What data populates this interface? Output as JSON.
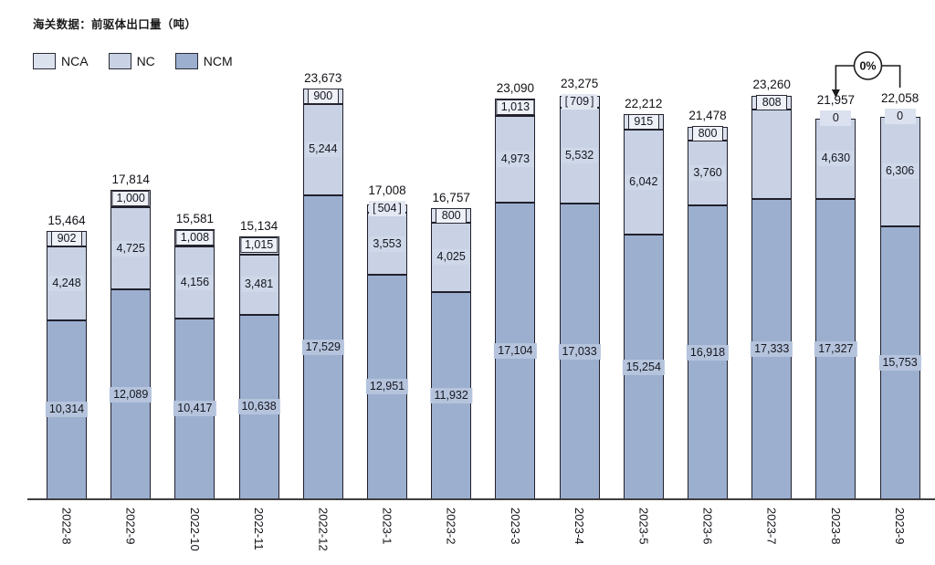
{
  "title": "海关数据：前驱体出口量（吨）",
  "legend": [
    {
      "label": "NCA",
      "color": "#dbe1ed"
    },
    {
      "label": "NC",
      "color": "#c8d2e4"
    },
    {
      "label": "NCM",
      "color": "#9cafcf"
    }
  ],
  "chart_data": {
    "type": "bar",
    "stacked": true,
    "title": "海关数据：前驱体出口量（吨）",
    "xlabel": "",
    "ylabel": "",
    "ylim": [
      0,
      24000
    ],
    "grid": false,
    "legend_position": "top-left",
    "categories": [
      "2022-8",
      "2022-9",
      "2022-10",
      "2022-11",
      "2022-12",
      "2023-1",
      "2023-2",
      "2023-3",
      "2023-4",
      "2023-5",
      "2023-6",
      "2023-7",
      "2023-8",
      "2023-9"
    ],
    "series": [
      {
        "name": "NCM",
        "color": "#9cafcf",
        "label_bg": "#b5c4dc",
        "values": [
          10314,
          12089,
          10417,
          10638,
          17529,
          12951,
          11932,
          17104,
          17033,
          15254,
          16918,
          17333,
          17327,
          15753
        ],
        "labels": [
          "10,314",
          "12,089",
          "10,417",
          "10,638",
          "17,529",
          "12,951",
          "11,932",
          "17,104",
          "17,033",
          "15,254",
          "16,918",
          "17,333",
          "17,327",
          "15,753"
        ]
      },
      {
        "name": "NC",
        "color": "#c8d2e4",
        "label_bg": "#ced8e8",
        "values": [
          4248,
          4725,
          4156,
          3481,
          5244,
          3553,
          4025,
          4973,
          5532,
          6042,
          3760,
          5119,
          4630,
          6306
        ],
        "labels": [
          "4,248",
          "4,725",
          "4,156",
          "3,481",
          "5,244",
          "3,553",
          "4,025",
          "4,973",
          "5,532",
          "6,042",
          "3,760",
          "",
          "4,630",
          "6,306"
        ]
      },
      {
        "name": "NCA",
        "color": "#dbe1ed",
        "values": [
          902,
          1000,
          1008,
          1015,
          900,
          504,
          800,
          1013,
          709,
          915,
          800,
          808,
          0,
          0
        ],
        "labels": [
          "902",
          "1,000",
          "1,008",
          "1,015",
          "900",
          "504",
          "800",
          "1,013",
          "709",
          "915",
          "800",
          "808",
          "0",
          "0"
        ],
        "bracketed_indices": [
          5,
          8
        ]
      }
    ],
    "totals": {
      "values": [
        15464,
        17814,
        15581,
        15134,
        23673,
        17008,
        16757,
        23090,
        23275,
        22212,
        21478,
        23260,
        21957,
        22058
      ],
      "labels": [
        "15,464",
        "17,814",
        "15,581",
        "15,134",
        "23,673",
        "17,008",
        "16,757",
        "23,090",
        "23,275",
        "22,212",
        "21,478",
        "23,260",
        "21,957",
        "22,058"
      ]
    },
    "annotation": {
      "label": "0%",
      "from_category": "2023-8",
      "to_category": "2023-9"
    }
  }
}
